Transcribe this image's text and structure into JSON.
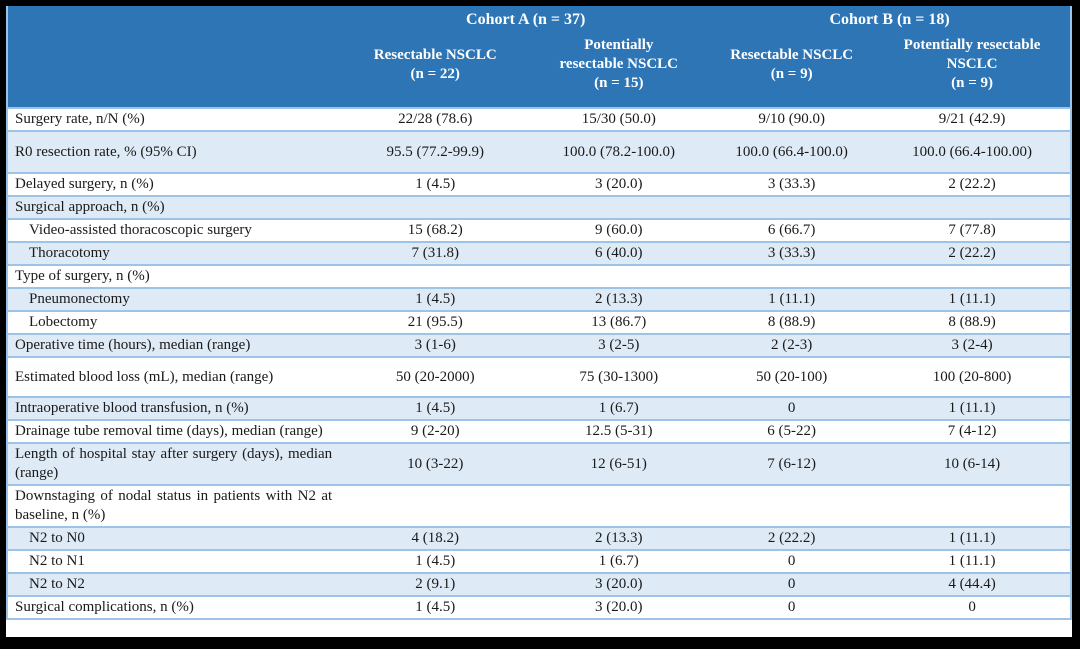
{
  "table": {
    "header": {
      "cohorts": [
        {
          "label": "Cohort A (n = 37)",
          "subcolumns": [
            {
              "title": "Resectable NSCLC",
              "n": "(n = 22)"
            },
            {
              "title": "Potentially resectable NSCLC",
              "n": "(n = 15)"
            }
          ]
        },
        {
          "label": "Cohort B (n = 18)",
          "subcolumns": [
            {
              "title": "Resectable NSCLC",
              "n": "(n = 9)"
            },
            {
              "title": "Potentially resectable NSCLC",
              "n": "(n = 9)"
            }
          ]
        }
      ]
    },
    "rows": [
      {
        "label": "Surgery rate, n/N (%)",
        "indent": false,
        "values": [
          "22/28 (78.6)",
          "15/30 (50.0)",
          "9/10 (90.0)",
          "9/21 (42.9)"
        ]
      },
      {
        "label": "R0 resection rate, % (95% CI)",
        "indent": false,
        "values": [
          "95.5 (77.2-99.9)",
          "100.0 (78.2-100.0)",
          "100.0 (66.4-100.0)",
          "100.0 (66.4-100.00)"
        ]
      },
      {
        "label": "Delayed surgery, n (%)",
        "indent": false,
        "values": [
          "1 (4.5)",
          "3 (20.0)",
          "3 (33.3)",
          "2 (22.2)"
        ]
      },
      {
        "label": "Surgical approach, n (%)",
        "indent": false,
        "values": [
          "",
          "",
          "",
          ""
        ]
      },
      {
        "label": "Video-assisted thoracoscopic surgery",
        "indent": true,
        "values": [
          "15 (68.2)",
          "9 (60.0)",
          "6 (66.7)",
          "7 (77.8)"
        ]
      },
      {
        "label": "Thoracotomy",
        "indent": true,
        "values": [
          "7 (31.8)",
          "6 (40.0)",
          "3 (33.3)",
          "2 (22.2)"
        ]
      },
      {
        "label": "Type of surgery, n (%)",
        "indent": false,
        "values": [
          "",
          "",
          "",
          ""
        ]
      },
      {
        "label": "Pneumonectomy",
        "indent": true,
        "values": [
          "1 (4.5)",
          "2 (13.3)",
          "1 (11.1)",
          "1 (11.1)"
        ]
      },
      {
        "label": "Lobectomy",
        "indent": true,
        "values": [
          "21 (95.5)",
          "13 (86.7)",
          "8 (88.9)",
          "8 (88.9)"
        ]
      },
      {
        "label": "Operative time (hours), median (range)",
        "indent": false,
        "values": [
          "3 (1-6)",
          "3 (2-5)",
          "2 (2-3)",
          "3 (2-4)"
        ]
      },
      {
        "label": "Estimated blood loss (mL), median (range)",
        "indent": false,
        "values": [
          "50 (20-2000)",
          "75 (30-1300)",
          "50 (20-100)",
          "100 (20-800)"
        ]
      },
      {
        "label": "Intraoperative blood transfusion, n (%)",
        "indent": false,
        "values": [
          "1 (4.5)",
          "1 (6.7)",
          "0",
          "1 (11.1)"
        ]
      },
      {
        "label": "Drainage tube removal time (days), median (range)",
        "indent": false,
        "values": [
          "9 (2-20)",
          "12.5 (5-31)",
          "6 (5-22)",
          "7 (4-12)"
        ]
      },
      {
        "label": "Length of hospital stay after surgery (days), median (range)",
        "indent": false,
        "values": [
          "10 (3-22)",
          "12 (6-51)",
          "7 (6-12)",
          "10 (6-14)"
        ]
      },
      {
        "label": "Downstaging of nodal status in patients with N2 at baseline, n (%)",
        "indent": false,
        "values": [
          "",
          "",
          "",
          ""
        ]
      },
      {
        "label": "N2 to N0",
        "indent": true,
        "values": [
          "4 (18.2)",
          "2 (13.3)",
          "2 (22.2)",
          "1 (11.1)"
        ]
      },
      {
        "label": "N2 to N1",
        "indent": true,
        "values": [
          "1 (4.5)",
          "1 (6.7)",
          "0",
          "1 (11.1)"
        ]
      },
      {
        "label": "N2 to N2",
        "indent": true,
        "values": [
          "2 (9.1)",
          "3 (20.0)",
          "0",
          "4 (44.4)"
        ]
      },
      {
        "label": "Surgical complications, n (%)",
        "indent": false,
        "values": [
          "1 (4.5)",
          "3 (20.0)",
          "0",
          "0"
        ]
      }
    ],
    "colors": {
      "header_bg": "#2E75B6",
      "header_text": "#FFFFFF",
      "row_alt_bg": "#DEEAF6",
      "row_border": "#9DC3E6",
      "frame": "#000000"
    }
  }
}
